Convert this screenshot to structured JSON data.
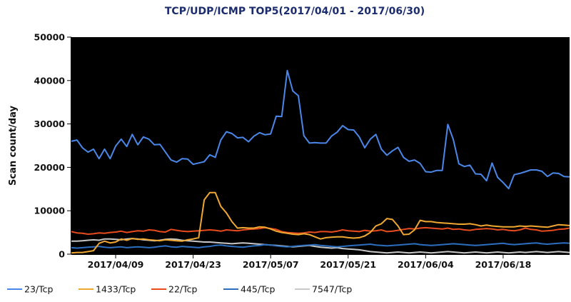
{
  "chart_data": {
    "type": "line",
    "title": "TCP/UDP/ICMP TOP5(2017/04/01 - 2017/06/30)",
    "xlabel": "",
    "ylabel": "Scan count/day",
    "x_start": "2017-04-01",
    "x_end": "2017-06-30",
    "x_tick_labels": [
      "2017/04/09",
      "2017/04/23",
      "2017/05/07",
      "2017/05/21",
      "2017/06/04",
      "2017/06/18"
    ],
    "ylim": [
      0,
      50000
    ],
    "y_ticks": [
      0,
      10000,
      20000,
      30000,
      40000,
      50000
    ],
    "grid": false,
    "legend_position": "bottom",
    "background": "#000000",
    "series": [
      {
        "name": "23/Tcp",
        "color": "#4a87e8",
        "values": [
          26000,
          26300,
          24500,
          23500,
          24200,
          22000,
          24200,
          22000,
          24900,
          26500,
          24800,
          27600,
          25200,
          27000,
          26500,
          25200,
          25300,
          23500,
          21700,
          21200,
          22000,
          21900,
          20700,
          21000,
          21300,
          22900,
          22300,
          26300,
          28200,
          27800,
          26800,
          26900,
          25900,
          27200,
          28000,
          27500,
          27700,
          31800,
          31700,
          42300,
          37600,
          36500,
          27300,
          25600,
          25700,
          25600,
          25600,
          27200,
          28100,
          29600,
          28700,
          28600,
          27000,
          24500,
          26500,
          27600,
          24200,
          22800,
          23800,
          24600,
          22300,
          21400,
          21700,
          20900,
          19000,
          18900,
          19300,
          19300,
          29900,
          26400,
          20800,
          20200,
          20500,
          18500,
          18400,
          16900,
          21000,
          17700,
          16500,
          15100,
          18300,
          18600,
          19000,
          19400,
          19400,
          19100,
          17900,
          18700,
          18600,
          17900,
          17800
        ]
      },
      {
        "name": "1433/Tcp",
        "color": "#f0a830",
        "values": [
          300,
          400,
          400,
          600,
          800,
          2500,
          3000,
          2600,
          2800,
          3500,
          3200,
          3600,
          3400,
          3500,
          3300,
          3200,
          3100,
          3300,
          3200,
          3100,
          3000,
          3300,
          3500,
          3800,
          12500,
          14200,
          14200,
          11000,
          9500,
          7500,
          6000,
          6100,
          6000,
          6000,
          6300,
          6200,
          5800,
          5300,
          5000,
          4800,
          4600,
          4500,
          4700,
          4500,
          4000,
          3500,
          3800,
          3900,
          4000,
          4000,
          3800,
          3700,
          3800,
          4200,
          5000,
          6500,
          7000,
          8200,
          8000,
          6500,
          4500,
          4600,
          5600,
          7800,
          7500,
          7500,
          7300,
          7200,
          7100,
          7000,
          6900,
          6900,
          7000,
          6800,
          6500,
          6700,
          6500,
          6400,
          6300,
          6300,
          6300,
          6500,
          6400,
          6500,
          6400,
          6300,
          6200,
          6500,
          6800,
          6700,
          6600
        ]
      },
      {
        "name": "22/Tcp",
        "color": "#e84c1e",
        "values": [
          5200,
          4900,
          4800,
          4600,
          4700,
          4900,
          4800,
          5000,
          5100,
          5300,
          5000,
          5200,
          5400,
          5300,
          5600,
          5500,
          5200,
          5100,
          5700,
          5500,
          5300,
          5200,
          5300,
          5400,
          5500,
          5600,
          5500,
          5300,
          5600,
          5500,
          5400,
          5600,
          5700,
          5800,
          5900,
          6100,
          5900,
          5700,
          5200,
          5000,
          4900,
          4800,
          4900,
          5100,
          5000,
          5200,
          5200,
          5100,
          5300,
          5600,
          5400,
          5300,
          5200,
          5500,
          5300,
          5400,
          5600,
          5200,
          5300,
          5500,
          5700,
          5900,
          5800,
          6000,
          6100,
          6000,
          5900,
          5800,
          6000,
          5700,
          5800,
          5600,
          5500,
          5700,
          5800,
          5900,
          5800,
          5600,
          5700,
          5500,
          5400,
          5600,
          6000,
          5700,
          5600,
          5300,
          5400,
          5500,
          5700,
          5800,
          6000
        ]
      },
      {
        "name": "445/Tcp",
        "color": "#2c6fc0",
        "values": [
          1500,
          1400,
          1500,
          1600,
          1700,
          1800,
          1600,
          1500,
          1600,
          1700,
          1500,
          1600,
          1700,
          1600,
          1500,
          1600,
          1800,
          1900,
          1700,
          1600,
          1800,
          1700,
          1600,
          1500,
          1700,
          1800,
          2000,
          2100,
          1900,
          1800,
          1700,
          1600,
          1800,
          1900,
          2000,
          2200,
          2100,
          1900,
          1800,
          1700,
          1800,
          1900,
          2000,
          2100,
          2200,
          2000,
          1900,
          1800,
          1700,
          1800,
          1900,
          2000,
          2100,
          2200,
          2300,
          2100,
          2000,
          1900,
          2000,
          2100,
          2200,
          2300,
          2400,
          2200,
          2100,
          2000,
          2100,
          2200,
          2300,
          2400,
          2300,
          2200,
          2100,
          2000,
          2100,
          2200,
          2300,
          2400,
          2500,
          2300,
          2200,
          2300,
          2400,
          2500,
          2600,
          2400,
          2300,
          2400,
          2500,
          2600,
          2500
        ]
      },
      {
        "name": "7547/Tcp",
        "color": "#c8c8c8",
        "values": [
          3000,
          3000,
          3100,
          3200,
          3300,
          3200,
          3500,
          3500,
          3400,
          3300,
          3500,
          3600,
          3500,
          3300,
          3200,
          3100,
          3200,
          3400,
          3500,
          3400,
          3200,
          3100,
          3000,
          2900,
          2800,
          2800,
          2700,
          2600,
          2500,
          2400,
          2500,
          2600,
          2500,
          2400,
          2300,
          2200,
          2100,
          2000,
          1900,
          1800,
          1700,
          1800,
          1900,
          2000,
          1800,
          1600,
          1500,
          1400,
          1500,
          1300,
          1200,
          1100,
          1000,
          800,
          600,
          500,
          400,
          300,
          400,
          500,
          400,
          300,
          400,
          500,
          400,
          300,
          400,
          500,
          600,
          500,
          400,
          300,
          400,
          500,
          400,
          300,
          400,
          500,
          400,
          300,
          400,
          500,
          400,
          500,
          600,
          500,
          400,
          500,
          600,
          500,
          400
        ]
      }
    ]
  }
}
